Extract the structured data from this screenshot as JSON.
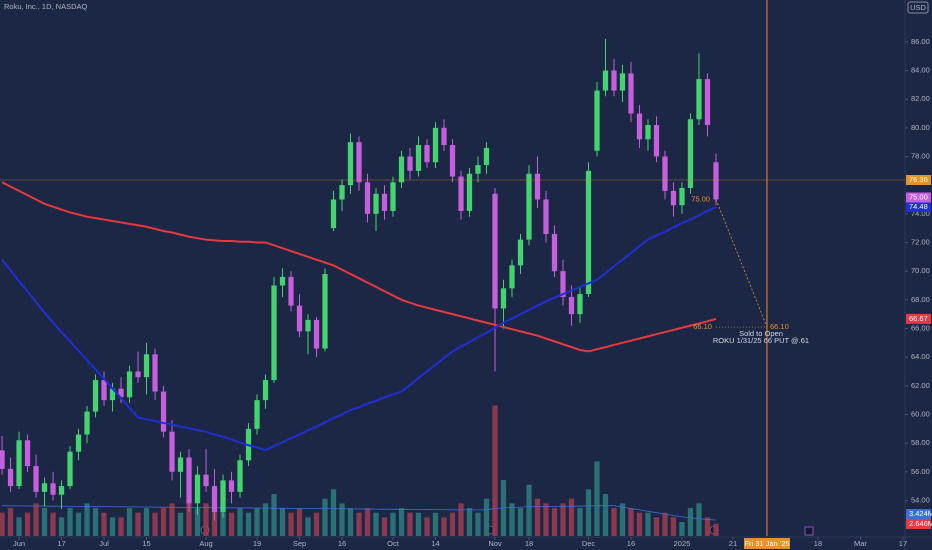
{
  "chart_data": {
    "type": "candlestick",
    "title": "Roku, Inc., 1D, NASDAQ",
    "currency": "USD",
    "up_color": "#43d46f",
    "down_color": "#c65fdc",
    "volume_up_color": "#2b7f7d",
    "volume_down_color": "#a03d52",
    "ylim": [
      51.52,
      88.92
    ],
    "yticks": [
      {
        "value": 54,
        "label": "54.00"
      },
      {
        "value": 56,
        "label": "56.00"
      },
      {
        "value": 58,
        "label": "58.00"
      },
      {
        "value": 60,
        "label": "60.00"
      },
      {
        "value": 62,
        "label": "62.00"
      },
      {
        "value": 64,
        "label": "64.00"
      },
      {
        "value": 66,
        "label": "66.00"
      },
      {
        "value": 68,
        "label": "68.00"
      },
      {
        "value": 70,
        "label": "70.00"
      },
      {
        "value": 72,
        "label": "72.00"
      },
      {
        "value": 74,
        "label": "74.00"
      },
      {
        "value": 78,
        "label": "78.00"
      },
      {
        "value": 80,
        "label": "80.00"
      },
      {
        "value": 82,
        "label": "82.00"
      },
      {
        "value": 84,
        "label": "84.00"
      },
      {
        "value": 86,
        "label": "86.00"
      }
    ],
    "xlim": [
      -0.24,
      106.24
    ],
    "xticks": [
      {
        "value": 2,
        "label": "Jun"
      },
      {
        "value": 7,
        "label": "17"
      },
      {
        "value": 12,
        "label": "Jul"
      },
      {
        "value": 17,
        "label": "15"
      },
      {
        "value": 24,
        "label": "Aug"
      },
      {
        "value": 30,
        "label": "19"
      },
      {
        "value": 35,
        "label": "Sep"
      },
      {
        "value": 40,
        "label": "16"
      },
      {
        "value": 46,
        "label": "Oct"
      },
      {
        "value": 51,
        "label": "14"
      },
      {
        "value": 58,
        "label": "Nov"
      },
      {
        "value": 62,
        "label": "18"
      },
      {
        "value": 69,
        "label": "Dec"
      },
      {
        "value": 74,
        "label": "16"
      },
      {
        "value": 80,
        "label": "2025"
      },
      {
        "value": 86,
        "label": "21"
      },
      {
        "value": 96,
        "label": "18"
      },
      {
        "value": 101,
        "label": "Mar"
      },
      {
        "value": 106,
        "label": "17"
      }
    ],
    "ohlc": [
      [
        57.5,
        58.5,
        55.8,
        56.2
      ],
      [
        56.2,
        57.0,
        54.6,
        55.0
      ],
      [
        55.0,
        58.8,
        54.8,
        58.2
      ],
      [
        58.2,
        58.6,
        56.0,
        56.4
      ],
      [
        56.4,
        57.2,
        54.2,
        54.6
      ],
      [
        54.6,
        55.6,
        53.6,
        55.2
      ],
      [
        55.2,
        56.0,
        54.0,
        54.4
      ],
      [
        54.4,
        55.4,
        53.4,
        55.0
      ],
      [
        55.0,
        57.8,
        54.8,
        57.4
      ],
      [
        57.4,
        59.0,
        56.8,
        58.6
      ],
      [
        58.6,
        60.6,
        58.0,
        60.2
      ],
      [
        60.2,
        62.8,
        59.8,
        62.4
      ],
      [
        62.4,
        63.0,
        60.6,
        61.0
      ],
      [
        61.0,
        62.2,
        60.2,
        61.8
      ],
      [
        61.8,
        62.6,
        60.8,
        61.2
      ],
      [
        61.2,
        63.4,
        60.8,
        63.0
      ],
      [
        63.0,
        64.4,
        62.2,
        62.6
      ],
      [
        62.6,
        65.0,
        61.4,
        64.2
      ],
      [
        64.2,
        64.6,
        61.0,
        61.6
      ],
      [
        61.6,
        62.0,
        58.4,
        58.8
      ],
      [
        58.8,
        59.6,
        55.4,
        56.0
      ],
      [
        56.0,
        57.4,
        54.2,
        57.0
      ],
      [
        57.0,
        57.6,
        53.2,
        53.8
      ],
      [
        53.8,
        56.4,
        53.0,
        55.8
      ],
      [
        55.8,
        57.6,
        54.6,
        55.0
      ],
      [
        55.0,
        56.2,
        52.6,
        53.2
      ],
      [
        53.2,
        55.8,
        52.8,
        55.4
      ],
      [
        55.4,
        56.0,
        53.8,
        54.6
      ],
      [
        54.6,
        57.2,
        54.2,
        56.8
      ],
      [
        56.8,
        59.4,
        56.4,
        59.0
      ],
      [
        59.0,
        61.4,
        58.6,
        61.0
      ],
      [
        61.0,
        62.8,
        60.4,
        62.4
      ],
      [
        62.4,
        69.6,
        62.2,
        69.0
      ],
      [
        69.0,
        70.2,
        68.2,
        69.6
      ],
      [
        69.6,
        70.0,
        67.2,
        67.6
      ],
      [
        67.6,
        68.4,
        65.4,
        65.8
      ],
      [
        65.8,
        67.0,
        64.2,
        66.6
      ],
      [
        66.6,
        66.8,
        64.0,
        64.6
      ],
      [
        64.6,
        70.2,
        64.4,
        69.8
      ],
      [
        73.0,
        75.6,
        72.8,
        75.0
      ],
      [
        75.0,
        76.4,
        74.2,
        76.0
      ],
      [
        76.0,
        79.6,
        75.4,
        79.0
      ],
      [
        79.0,
        79.4,
        75.6,
        76.2
      ],
      [
        76.2,
        76.8,
        73.4,
        74.0
      ],
      [
        74.0,
        75.8,
        72.8,
        75.4
      ],
      [
        75.4,
        76.0,
        73.6,
        74.2
      ],
      [
        74.2,
        76.6,
        73.8,
        76.2
      ],
      [
        76.2,
        78.4,
        75.8,
        78.0
      ],
      [
        78.0,
        78.6,
        76.4,
        77.0
      ],
      [
        77.0,
        79.4,
        76.6,
        78.8
      ],
      [
        78.8,
        79.2,
        77.2,
        77.6
      ],
      [
        77.6,
        80.4,
        77.2,
        80.0
      ],
      [
        80.0,
        80.6,
        78.4,
        78.8
      ],
      [
        78.8,
        79.2,
        76.2,
        76.6
      ],
      [
        76.6,
        77.0,
        73.6,
        74.2
      ],
      [
        74.2,
        77.2,
        73.8,
        76.8
      ],
      [
        76.8,
        78.0,
        76.2,
        77.4
      ],
      [
        77.4,
        79.0,
        76.8,
        78.6
      ],
      [
        75.4,
        75.8,
        63.0,
        67.4
      ],
      [
        67.4,
        69.4,
        66.0,
        68.8
      ],
      [
        68.8,
        70.8,
        68.2,
        70.4
      ],
      [
        70.4,
        72.6,
        69.8,
        72.2
      ],
      [
        72.2,
        77.4,
        71.8,
        76.8
      ],
      [
        76.8,
        78.0,
        74.4,
        75.0
      ],
      [
        75.0,
        75.6,
        72.0,
        72.6
      ],
      [
        72.6,
        73.2,
        69.6,
        70.0
      ],
      [
        70.0,
        70.8,
        67.6,
        68.2
      ],
      [
        68.2,
        69.0,
        66.2,
        67.0
      ],
      [
        67.0,
        68.8,
        66.4,
        68.4
      ],
      [
        68.4,
        77.6,
        68.2,
        77.0
      ],
      [
        78.4,
        83.2,
        78.0,
        82.6
      ],
      [
        82.6,
        86.2,
        82.2,
        84.0
      ],
      [
        84.0,
        84.8,
        82.2,
        82.6
      ],
      [
        82.6,
        84.4,
        81.8,
        83.8
      ],
      [
        83.8,
        84.6,
        80.4,
        81.0
      ],
      [
        81.0,
        81.6,
        78.6,
        79.2
      ],
      [
        79.2,
        80.6,
        78.4,
        80.2
      ],
      [
        80.2,
        80.8,
        77.6,
        78.0
      ],
      [
        78.0,
        78.4,
        75.0,
        75.6
      ],
      [
        75.6,
        76.2,
        73.8,
        74.6
      ],
      [
        74.6,
        76.2,
        74.0,
        75.8
      ],
      [
        75.8,
        81.0,
        75.4,
        80.6
      ],
      [
        80.6,
        85.2,
        80.2,
        83.4
      ],
      [
        83.4,
        83.8,
        79.4,
        80.2
      ],
      [
        77.6,
        78.2,
        74.6,
        75.0
      ]
    ],
    "close_label": "75.00",
    "vlim": [
      0,
      115
    ],
    "volume": [
      5,
      6,
      4,
      5,
      7,
      6,
      5,
      4,
      6,
      5,
      7,
      6,
      5,
      4,
      4,
      6,
      5,
      6,
      5,
      6,
      7,
      5,
      8,
      6,
      7,
      9,
      6,
      5,
      6,
      5,
      6,
      7,
      9,
      6,
      5,
      6,
      4,
      5,
      8,
      10,
      7,
      6,
      5,
      6,
      5,
      4,
      5,
      6,
      5,
      5,
      4,
      5,
      4,
      5,
      7,
      6,
      5,
      8,
      28,
      12,
      7,
      6,
      11,
      8,
      7,
      6,
      7,
      8,
      6,
      10,
      16,
      9,
      6,
      7,
      6,
      5,
      5,
      4,
      5,
      4,
      3,
      6,
      7,
      4,
      2.646
    ],
    "volume_label": "2.646M",
    "volume_ma_color": "#3b6fd6",
    "volume_ma": [
      6.5,
      6.48,
      6.47,
      6.45,
      6.43,
      6.42,
      6.4,
      6.38,
      6.37,
      6.35,
      6.33,
      6.32,
      6.3,
      6.28,
      6.27,
      6.25,
      6.23,
      6.22,
      6.2,
      6.18,
      6.17,
      6.15,
      6.13,
      6.12,
      6.1,
      6.08,
      6.07,
      6.05,
      6.03,
      6.02,
      6.0,
      5.98,
      5.97,
      5.95,
      5.93,
      5.92,
      5.9,
      5.88,
      5.87,
      5.85,
      5.83,
      5.82,
      5.8,
      5.78,
      5.77,
      5.75,
      5.73,
      5.72,
      5.7,
      5.68,
      5.67,
      5.65,
      5.63,
      5.62,
      5.6,
      5.6,
      5.6,
      5.6,
      5.9,
      6.0,
      6.1,
      6.2,
      6.3,
      6.3,
      6.3,
      6.35,
      6.35,
      6.4,
      6.4,
      6.45,
      6.5,
      6.5,
      6.5,
      6.2,
      5.9,
      5.6,
      5.3,
      5.0,
      4.7,
      4.4,
      4.1,
      3.9,
      3.7,
      3.55,
      3.424
    ],
    "volume_ma_label": "3.424M",
    "moving_averages": [
      {
        "color": "#e8393f",
        "values": [
          76.2,
          75.9,
          75.6,
          75.3,
          75.0,
          74.7,
          74.5,
          74.3,
          74.1,
          73.95,
          73.8,
          73.7,
          73.6,
          73.5,
          73.4,
          73.3,
          73.2,
          73.1,
          72.95,
          72.8,
          72.7,
          72.55,
          72.4,
          72.3,
          72.2,
          72.15,
          72.1,
          72.1,
          72.05,
          72.05,
          72.0,
          72.0,
          71.8,
          71.6,
          71.4,
          71.2,
          71.0,
          70.8,
          70.6,
          70.4,
          70.1,
          69.8,
          69.5,
          69.2,
          68.9,
          68.6,
          68.3,
          68.0,
          67.8,
          67.6,
          67.45,
          67.3,
          67.15,
          67.0,
          66.85,
          66.7,
          66.55,
          66.4,
          66.25,
          66.1,
          65.95,
          65.8,
          65.65,
          65.5,
          65.3,
          65.1,
          64.9,
          64.7,
          64.5,
          64.4,
          64.55,
          64.7,
          64.85,
          65.0,
          65.15,
          65.3,
          65.45,
          65.6,
          65.75,
          65.9,
          66.05,
          66.2,
          66.35,
          66.5,
          66.67
        ],
        "last_label": "66.67"
      },
      {
        "color": "#1f2fd6",
        "values": [
          70.8,
          70.05,
          69.3,
          68.6,
          67.85,
          67.1,
          66.4,
          65.75,
          65.1,
          64.45,
          63.8,
          63.15,
          62.5,
          61.8,
          61.15,
          60.45,
          59.8,
          59.65,
          59.55,
          59.4,
          59.3,
          59.15,
          59.05,
          58.9,
          58.8,
          58.6,
          58.45,
          58.25,
          58.05,
          57.85,
          57.7,
          57.5,
          57.8,
          58.05,
          58.35,
          58.6,
          58.9,
          59.15,
          59.45,
          59.75,
          60.0,
          60.3,
          60.5,
          60.75,
          60.95,
          61.2,
          61.4,
          61.6,
          62.05,
          62.55,
          63.0,
          63.45,
          63.95,
          64.4,
          64.75,
          65.05,
          65.4,
          65.7,
          66.05,
          66.4,
          66.7,
          67.0,
          67.3,
          67.6,
          67.9,
          68.15,
          68.4,
          68.65,
          68.9,
          69.15,
          69.4,
          69.85,
          70.35,
          70.8,
          71.25,
          71.75,
          72.2,
          72.5,
          72.75,
          73.05,
          73.35,
          73.6,
          73.9,
          74.2,
          74.48
        ],
        "last_label": "74.48"
      }
    ],
    "alert_line": {
      "value": 76.36,
      "label": "76.36",
      "color": "#e8912b"
    },
    "annotation": {
      "x": 90,
      "date_label": "Fri 31 Jan '25",
      "strike": {
        "value": 66.1,
        "label": "66.10"
      },
      "lines": [
        "Sold to Open",
        "ROKU 1/31/25 66 PUT @.61"
      ],
      "color": "#e8912b"
    }
  }
}
